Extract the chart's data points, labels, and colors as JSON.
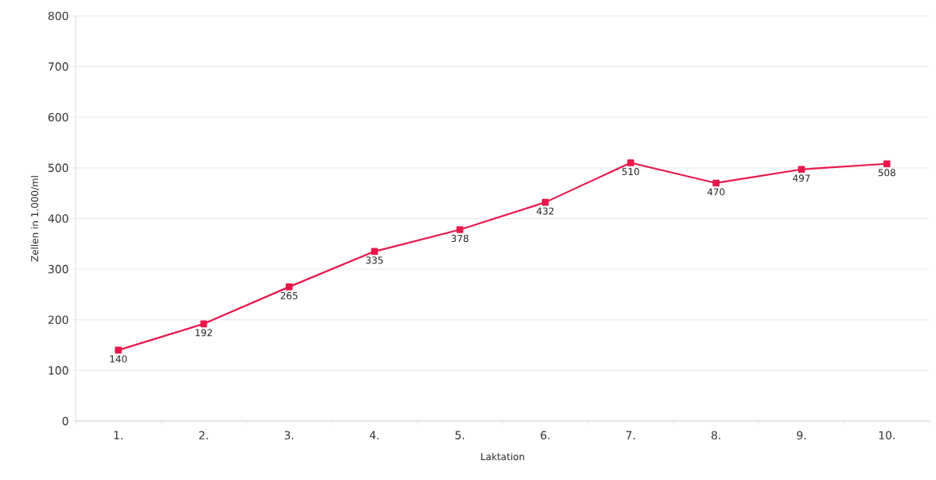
{
  "chart_data": {
    "type": "line",
    "xlabel": "Laktation",
    "ylabel": "Zellen in 1.000/ml",
    "categories": [
      "1.",
      "2.",
      "3.",
      "4.",
      "5.",
      "6.",
      "7.",
      "8.",
      "9.",
      "10."
    ],
    "values": [
      140,
      192,
      265,
      335,
      378,
      432,
      510,
      470,
      497,
      508
    ],
    "color": "#e8174a",
    "marker": "square",
    "line_style": "solid",
    "data_labels": true,
    "ylim": [
      0,
      800
    ],
    "yticks": [
      0,
      100,
      200,
      300,
      400,
      500,
      600,
      700,
      800
    ],
    "grid": "y"
  }
}
